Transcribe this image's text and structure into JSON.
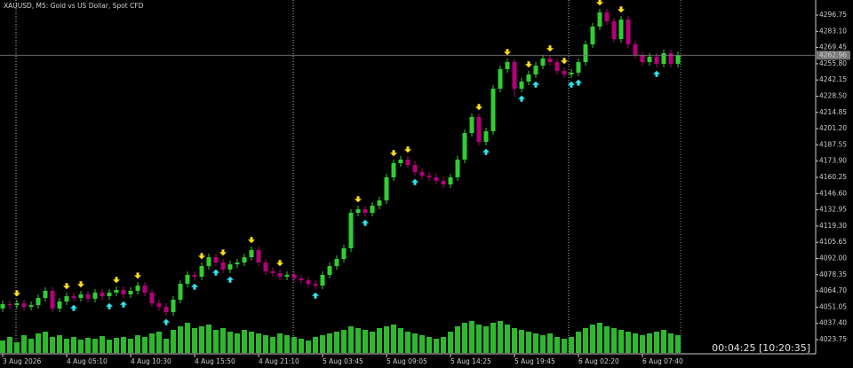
{
  "chart_data": {
    "type": "candlestick",
    "title": "XAUUSD, M5:  Gold vs US Dollar, Spot CFD",
    "timer": "00:04:25 [10:20:35]",
    "bull_color": "#32cd32",
    "bear_color": "#b4007a",
    "volume_color": "#2fb82f",
    "sell_arrow_color": "#ffe01a",
    "buy_arrow_color": "#2ee6f0",
    "ylim": [
      4012.56,
      4309.43
    ],
    "yticks": [
      4296.75,
      {
        "value": 4283.1,
        "label": "4283.10"
      },
      4269.45,
      {
        "value": 4255.8,
        "label": "4255.80"
      },
      4242.15,
      {
        "value": 4228.5,
        "label": "4228.50"
      },
      4214.85,
      {
        "value": 4201.2,
        "label": "4201.20"
      },
      4187.55,
      {
        "value": 4173.9,
        "label": "4173.90"
      },
      4160.25,
      {
        "value": 4146.6,
        "label": "4146.60"
      },
      4132.95,
      {
        "value": 4119.3,
        "label": "4119.30"
      },
      4105.65,
      {
        "value": 4092.0,
        "label": "4092.00"
      },
      4078.35,
      {
        "value": 4064.7,
        "label": "4064.70"
      },
      4051.05,
      {
        "value": 4037.4,
        "label": "4037.40"
      },
      4023.75
    ],
    "categories": [
      "3 Aug 2026",
      null,
      null,
      null,
      null,
      null,
      null,
      null,
      null,
      "4 Aug 05:10",
      null,
      null,
      null,
      null,
      null,
      null,
      null,
      null,
      "4 Aug 10:30",
      null,
      null,
      null,
      null,
      null,
      null,
      null,
      null,
      "4 Aug 15:50",
      null,
      null,
      null,
      null,
      null,
      null,
      null,
      null,
      "4 Aug 21:10",
      null,
      null,
      null,
      null,
      null,
      null,
      null,
      null,
      "5 Aug 03:45",
      null,
      null,
      null,
      null,
      null,
      null,
      null,
      null,
      "5 Aug 09:05",
      null,
      null,
      null,
      null,
      null,
      null,
      null,
      null,
      "5 Aug 14:25",
      null,
      null,
      null,
      null,
      null,
      null,
      null,
      null,
      "5 Aug 19:45",
      null,
      null,
      null,
      null,
      null,
      null,
      null,
      null,
      "6 Aug 02:20",
      null,
      null,
      null,
      null,
      null,
      null,
      null,
      null,
      "6 Aug 07:40",
      null,
      null,
      null,
      null,
      null
    ],
    "candles": [
      [
        4050.0,
        4056.6,
        4047.0,
        4053.6
      ],
      [
        4053.6,
        4056.6,
        4049.8,
        4052.8
      ],
      [
        4052.8,
        4057.3,
        4049.8,
        4054.3
      ],
      [
        4054.3,
        4057.3,
        4048.3,
        4051.3
      ],
      [
        4051.3,
        4055.8,
        4048.3,
        4052.8
      ],
      [
        4052.8,
        4061.8,
        4049.8,
        4058.8
      ],
      [
        4058.8,
        4067.8,
        4055.8,
        4064.8
      ],
      [
        4064.8,
        4067.8,
        4046.9,
        4049.9
      ],
      [
        4049.9,
        4058.8,
        4046.9,
        4055.8
      ],
      [
        4055.8,
        4063.3,
        4052.8,
        4060.3
      ],
      [
        4060.3,
        4063.3,
        4055.8,
        4058.8
      ],
      [
        4058.8,
        4064.8,
        4055.8,
        4061.8
      ],
      [
        4061.8,
        4064.8,
        4055.1,
        4058.1
      ],
      [
        4058.1,
        4066.3,
        4055.1,
        4063.3
      ],
      [
        4063.3,
        4066.3,
        4057.3,
        4060.3
      ],
      [
        4060.3,
        4066.3,
        4057.3,
        4063.3
      ],
      [
        4063.3,
        4068.5,
        4060.3,
        4065.5
      ],
      [
        4065.5,
        4068.5,
        4058.8,
        4061.8
      ],
      [
        4061.8,
        4067.8,
        4058.8,
        4064.8
      ],
      [
        4064.8,
        4072.2,
        4061.8,
        4069.2
      ],
      [
        4069.2,
        4072.2,
        4060.3,
        4063.3
      ],
      [
        4063.3,
        4066.3,
        4051.3,
        4054.3
      ],
      [
        4054.3,
        4057.3,
        4048.3,
        4051.3
      ],
      [
        4051.3,
        4054.3,
        4043.9,
        4046.9
      ],
      [
        4046.9,
        4060.3,
        4043.9,
        4057.3
      ],
      [
        4057.3,
        4073.7,
        4054.3,
        4070.7
      ],
      [
        4070.7,
        4081.2,
        4067.7,
        4078.2
      ],
      [
        4078.2,
        4081.2,
        4073.7,
        4076.7
      ],
      [
        4076.7,
        4088.6,
        4073.7,
        4085.6
      ],
      [
        4085.6,
        4096.1,
        4082.6,
        4093.1
      ],
      [
        4093.1,
        4096.1,
        4085.6,
        4088.6
      ],
      [
        4088.6,
        4091.6,
        4079.7,
        4082.7
      ],
      [
        4082.7,
        4090.1,
        4079.7,
        4087.1
      ],
      [
        4087.1,
        4091.6,
        4084.1,
        4088.6
      ],
      [
        4088.6,
        4096.1,
        4085.6,
        4093.1
      ],
      [
        4093.1,
        4102.1,
        4090.1,
        4099.1
      ],
      [
        4099.1,
        4102.1,
        4085.6,
        4088.6
      ],
      [
        4088.6,
        4091.6,
        4078.2,
        4081.2
      ],
      [
        4081.2,
        4084.2,
        4076.7,
        4079.7
      ],
      [
        4079.7,
        4082.7,
        4073.7,
        4076.7
      ],
      [
        4076.7,
        4081.2,
        4073.7,
        4078.2
      ],
      [
        4078.2,
        4081.2,
        4072.2,
        4075.2
      ],
      [
        4075.2,
        4078.2,
        4070.7,
        4073.7
      ],
      [
        4073.7,
        4076.7,
        4067.7,
        4070.7
      ],
      [
        4070.7,
        4073.7,
        4066.2,
        4069.2
      ],
      [
        4069.2,
        4081.2,
        4066.2,
        4078.2
      ],
      [
        4078.2,
        4088.6,
        4075.2,
        4085.6
      ],
      [
        4085.6,
        4094.6,
        4082.6,
        4091.6
      ],
      [
        4091.6,
        4103.6,
        4088.6,
        4100.6
      ],
      [
        4100.6,
        4133.4,
        4097.6,
        4130.4
      ],
      [
        4130.4,
        4136.4,
        4127.4,
        4133.4
      ],
      [
        4133.4,
        4136.4,
        4127.4,
        4130.4
      ],
      [
        4130.4,
        4139.4,
        4127.4,
        4136.4
      ],
      [
        4136.4,
        4143.9,
        4133.4,
        4140.9
      ],
      [
        4140.9,
        4163.3,
        4137.9,
        4160.3
      ],
      [
        4160.3,
        4175.2,
        4157.3,
        4172.2
      ],
      [
        4172.2,
        4178.2,
        4169.2,
        4175.2
      ],
      [
        4175.2,
        4178.2,
        4167.7,
        4170.7
      ],
      [
        4170.7,
        4173.7,
        4161.7,
        4164.7
      ],
      [
        4164.7,
        4167.7,
        4158.7,
        4161.7
      ],
      [
        4161.7,
        4164.7,
        4157.3,
        4160.3
      ],
      [
        4160.3,
        4163.3,
        4154.3,
        4157.3
      ],
      [
        4157.3,
        4160.3,
        4151.3,
        4154.3
      ],
      [
        4154.3,
        4163.3,
        4151.3,
        4160.3
      ],
      [
        4160.3,
        4178.2,
        4157.3,
        4175.2
      ],
      [
        4175.2,
        4200.5,
        4172.2,
        4197.5
      ],
      [
        4197.5,
        4214.0,
        4194.5,
        4211.0
      ],
      [
        4211.0,
        4214.0,
        4187.1,
        4190.1
      ],
      [
        4190.1,
        4202.0,
        4187.1,
        4199.0
      ],
      [
        4199.0,
        4237.8,
        4196.0,
        4234.8
      ],
      [
        4234.8,
        4254.3,
        4231.8,
        4251.3
      ],
      [
        4251.3,
        4260.2,
        4248.3,
        4257.2
      ],
      [
        4257.2,
        4260.2,
        4228.0,
        4234.8
      ],
      [
        4234.8,
        4243.8,
        4231.8,
        4240.8
      ],
      [
        4240.8,
        4249.8,
        4237.8,
        4246.8
      ],
      [
        4246.8,
        4257.2,
        4243.8,
        4254.2
      ],
      [
        4254.2,
        4263.2,
        4251.2,
        4260.2
      ],
      [
        4260.2,
        4263.2,
        4254.2,
        4257.2
      ],
      [
        4257.2,
        4260.2,
        4246.8,
        4249.8
      ],
      [
        4249.8,
        4252.8,
        4243.8,
        4246.8
      ],
      [
        4246.8,
        4251.3,
        4243.8,
        4248.3
      ],
      [
        4248.3,
        4260.2,
        4245.3,
        4257.2
      ],
      [
        4257.2,
        4275.1,
        4254.2,
        4272.1
      ],
      [
        4272.1,
        4290.1,
        4269.1,
        4287.1
      ],
      [
        4287.1,
        4302.0,
        4284.1,
        4299.0
      ],
      [
        4299.0,
        4302.0,
        4288.5,
        4291.5
      ],
      [
        4291.5,
        4294.5,
        4273.6,
        4276.6
      ],
      [
        4276.6,
        4296.0,
        4273.6,
        4293.0
      ],
      [
        4293.0,
        4296.0,
        4269.1,
        4272.1
      ],
      [
        4272.1,
        4275.1,
        4260.2,
        4263.2
      ],
      [
        4263.2,
        4266.2,
        4254.2,
        4257.2
      ],
      [
        4257.2,
        4264.7,
        4254.2,
        4261.7
      ],
      [
        4261.7,
        4264.7,
        4252.7,
        4255.7
      ],
      [
        4255.7,
        4267.7,
        4252.7,
        4264.7
      ],
      [
        4264.7,
        4267.7,
        4252.7,
        4255.7
      ],
      [
        4255.7,
        4266.2,
        4252.7,
        4262.96
      ]
    ],
    "volume": [
      14,
      18,
      12,
      20,
      16,
      22,
      24,
      18,
      20,
      16,
      18,
      15,
      17,
      16,
      19,
      15,
      17,
      18,
      16,
      20,
      18,
      22,
      24,
      16,
      26,
      30,
      34,
      28,
      30,
      32,
      26,
      28,
      24,
      22,
      26,
      24,
      22,
      20,
      18,
      22,
      20,
      18,
      16,
      14,
      18,
      20,
      22,
      24,
      26,
      30,
      28,
      26,
      24,
      28,
      30,
      32,
      28,
      24,
      22,
      20,
      18,
      16,
      18,
      24,
      30,
      34,
      36,
      32,
      30,
      34,
      36,
      32,
      28,
      26,
      24,
      22,
      20,
      22,
      18,
      16,
      18,
      24,
      28,
      32,
      34,
      30,
      28,
      26,
      24,
      22,
      20,
      22,
      24,
      26,
      22,
      20
    ],
    "sell_arrows": [
      {
        "candle": 2,
        "price": 4062.3
      },
      {
        "candle": 9,
        "price": 4068.3
      },
      {
        "candle": 11,
        "price": 4069.8
      },
      {
        "candle": 16,
        "price": 4073.5
      },
      {
        "candle": 19,
        "price": 4077.2
      },
      {
        "candle": 28,
        "price": 4093.6
      },
      {
        "candle": 31,
        "price": 4096.6
      },
      {
        "candle": 35,
        "price": 4107.1
      },
      {
        "candle": 39,
        "price": 4087.7
      },
      {
        "candle": 50,
        "price": 4141.4
      },
      {
        "candle": 55,
        "price": 4180.2
      },
      {
        "candle": 57,
        "price": 4183.2
      },
      {
        "candle": 67,
        "price": 4219.0
      },
      {
        "candle": 71,
        "price": 4265.2
      },
      {
        "candle": 74,
        "price": 4254.8
      },
      {
        "candle": 77,
        "price": 4268.2
      },
      {
        "candle": 79,
        "price": 4257.8
      },
      {
        "candle": 84,
        "price": 4307.0
      },
      {
        "candle": 87,
        "price": 4301.0
      }
    ],
    "buy_arrows": [
      {
        "candle": 10,
        "price": 4050.8
      },
      {
        "candle": 15,
        "price": 4052.3
      },
      {
        "candle": 17,
        "price": 4053.8
      },
      {
        "candle": 23,
        "price": 4038.9
      },
      {
        "candle": 27,
        "price": 4068.7
      },
      {
        "candle": 30,
        "price": 4080.6
      },
      {
        "candle": 32,
        "price": 4074.7
      },
      {
        "candle": 44,
        "price": 4061.2
      },
      {
        "candle": 51,
        "price": 4122.4
      },
      {
        "candle": 58,
        "price": 4156.7
      },
      {
        "candle": 68,
        "price": 4182.1
      },
      {
        "candle": 73,
        "price": 4226.8
      },
      {
        "candle": 75,
        "price": 4238.8
      },
      {
        "candle": 80,
        "price": 4238.8
      },
      {
        "candle": 81,
        "price": 4240.3
      },
      {
        "candle": 92,
        "price": 4247.7
      }
    ]
  }
}
